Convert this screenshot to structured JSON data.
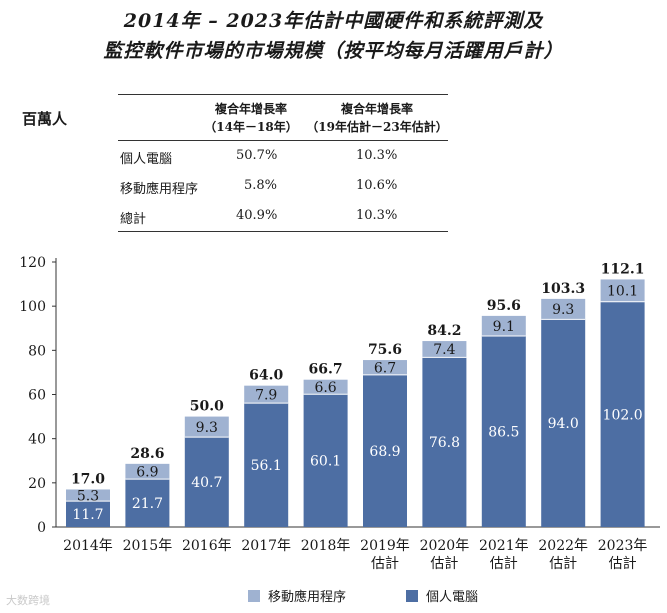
{
  "title_line1": "2014年 – 2023年估計中國硬件和系統評測及",
  "title_line2": "監控軟件市場的市場規模（按平均每月活躍用戶計）",
  "unit_label": "百萬人",
  "cagr_table": {
    "col1_line1": "複合年增長率",
    "col1_line2": "（14年－18年）",
    "col2_line1": "複合年增長率",
    "col2_line2": "（19年估計－23年估計）",
    "rows": [
      {
        "label": "個人電腦",
        "v1": "50.7%",
        "v2": "10.3%"
      },
      {
        "label": "移動應用程序",
        "v1": "5.8%",
        "v2": "10.6%"
      },
      {
        "label": "總計",
        "v1": "40.9%",
        "v2": "10.3%"
      }
    ]
  },
  "colors": {
    "pc": "#4d6ea3",
    "mobile": "#9fb2d1"
  },
  "watermark": "大数跨境",
  "chart_data": {
    "type": "bar",
    "stacked": true,
    "categories": [
      [
        "2014年"
      ],
      [
        "2015年"
      ],
      [
        "2016年"
      ],
      [
        "2017年"
      ],
      [
        "2018年"
      ],
      [
        "2019年",
        "估計"
      ],
      [
        "2020年",
        "估計"
      ],
      [
        "2021年",
        "估計"
      ],
      [
        "2022年",
        "估計"
      ],
      [
        "2023年",
        "估計"
      ]
    ],
    "series": [
      {
        "name": "個人電腦",
        "values": [
          11.7,
          21.7,
          40.7,
          56.1,
          60.1,
          68.9,
          76.8,
          86.5,
          94.0,
          102.0
        ]
      },
      {
        "name": "移動應用程序",
        "values": [
          5.3,
          6.9,
          9.3,
          7.9,
          6.6,
          6.7,
          7.4,
          9.1,
          9.3,
          10.1
        ]
      }
    ],
    "value_labels_pc": [
      "11.7",
      "21.7",
      "40.7",
      "56.1",
      "60.1",
      "68.9",
      "76.8",
      "86.5",
      "94.0",
      "102.0"
    ],
    "value_labels_mobile": [
      "5.3",
      "6.9",
      "9.3",
      "7.9",
      "6.6",
      "6.7",
      "7.4",
      "9.1",
      "9.3",
      "10.1"
    ],
    "totals": [
      "17.0",
      "28.6",
      "50.0",
      "64.0",
      "66.7",
      "75.6",
      "84.2",
      "95.6",
      "103.3",
      "112.1"
    ],
    "ylim": [
      0,
      120
    ],
    "yticks": [
      0,
      20,
      40,
      60,
      80,
      100,
      120
    ],
    "legend": [
      {
        "label": "移動應用程序",
        "color": "#9fb2d1"
      },
      {
        "label": "個人電腦",
        "color": "#4d6ea3"
      }
    ]
  }
}
